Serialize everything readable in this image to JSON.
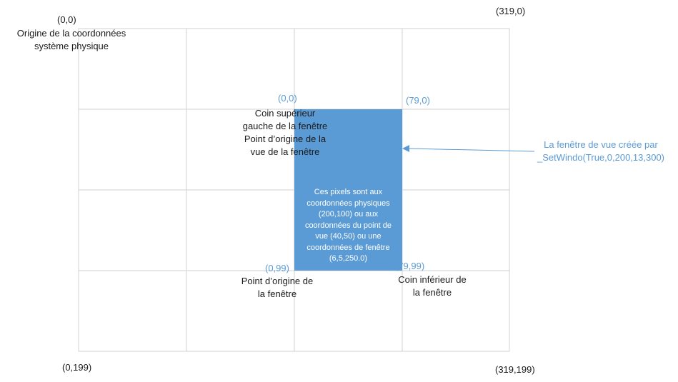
{
  "corners": {
    "top_left": "(0,0)",
    "top_right": "(319,0)",
    "bottom_left": "(0,199)",
    "bottom_right": "(319,199)"
  },
  "origin_label": [
    "Origine de la coordonnées",
    "système physique"
  ],
  "window_coords": {
    "top_left": "(0,0)",
    "top_right": "(79,0)",
    "bottom_left": "(0,99)",
    "bottom_right": "(79,99)"
  },
  "window_top_left_label": [
    "Coin supérieur",
    "gauche de la fenêtre",
    "Point d’origine de la",
    "vue de la fenêtre"
  ],
  "window_origin_label": [
    "Point d’origine de",
    "la fenêtre"
  ],
  "window_bottom_right_label": [
    "Coin inférieur de",
    "la fenêtre"
  ],
  "viewport_text": [
    "Ces pixels sont aux",
    "coordonnées physiques",
    "(200,100)  ou aux",
    "coordonnées du point de",
    "vue (40,50)  ou une",
    "coordonnées de fenêtre",
    "(6,5,250.0)"
  ],
  "callout": [
    "La fenêtre de vue créée par",
    "_SetWindo(True,0,200,13,300)"
  ],
  "colors": {
    "grid": "#d0d0d0",
    "viewport_fill": "#5b9bd5",
    "annotation": "#5b9bd5",
    "text": "#1a1a1a"
  }
}
